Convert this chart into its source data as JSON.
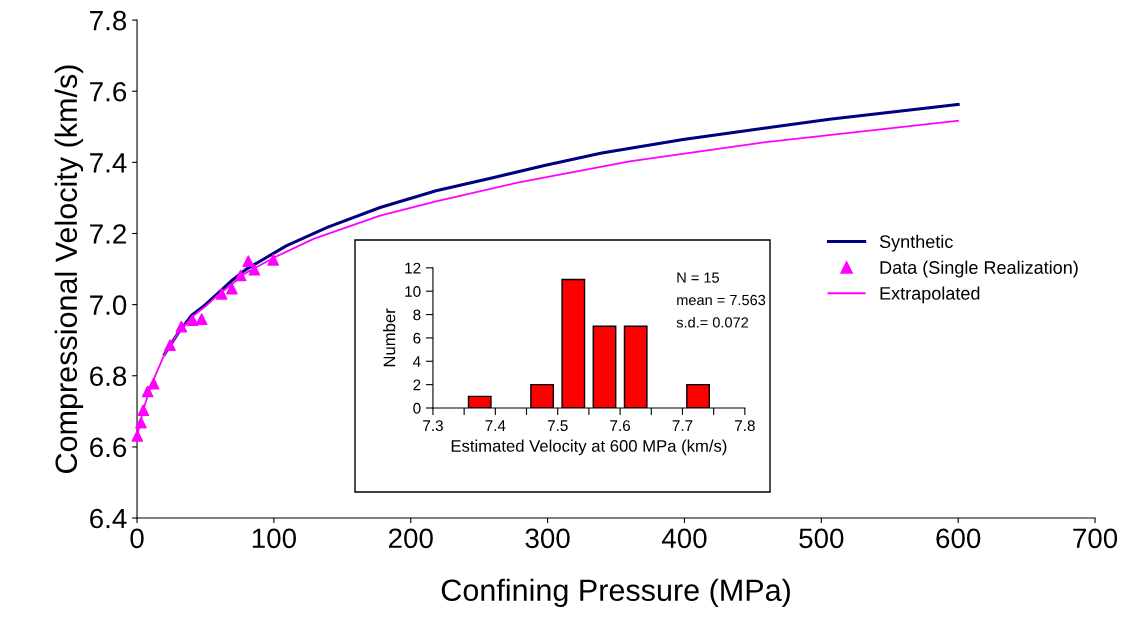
{
  "chart_data": [
    {
      "type": "line",
      "xlabel": "Confining Pressure (MPa)",
      "ylabel": "Compressional Velocity (km/s)",
      "xlim": [
        0,
        700
      ],
      "ylim": [
        6.4,
        7.8
      ],
      "xticks": [
        0,
        100,
        200,
        300,
        400,
        500,
        600,
        700
      ],
      "yticks": [
        6.4,
        6.6,
        6.8,
        {
          "value": 7,
          "label": "7.0"
        },
        7.2,
        7.4,
        7.6,
        7.8
      ],
      "grid": false,
      "legend": "right",
      "series": [
        {
          "name": "Synthetic",
          "type": "line",
          "color": "#000080",
          "marker": "none",
          "x": [
            20,
            30,
            40,
            50,
            60,
            70,
            80,
            93,
            109,
            139,
            177.6,
            218.5,
            260,
            298.5,
            339.6,
            399,
            458,
            506,
            600
          ],
          "values": [
            6.86,
            6.92,
            6.97,
            7.0,
            7.035,
            7.07,
            7.1,
            7.129,
            7.165,
            7.217,
            7.273,
            7.32,
            7.357,
            7.392,
            7.426,
            7.464,
            7.496,
            7.521,
            7.563
          ]
        },
        {
          "name": "Data (Single Realization)",
          "type": "scatter",
          "color": "#ff00ff",
          "marker": "triangle",
          "x": [
            0.2,
            2.9,
            4.6,
            7.8,
            12.1,
            24.1,
            32.4,
            40.6,
            47.2,
            61.8,
            69.3,
            75.7,
            81.3,
            85.7,
            99.5
          ],
          "values": [
            6.631,
            6.668,
            6.703,
            6.756,
            6.778,
            6.886,
            6.938,
            6.956,
            6.959,
            7.03,
            7.045,
            7.082,
            7.122,
            7.098,
            7.126
          ]
        },
        {
          "name": "Extrapolated",
          "type": "line",
          "color": "#ff00ff",
          "marker": "none",
          "x": [
            0,
            5,
            10,
            20,
            30,
            40,
            50,
            60,
            70,
            80,
            100,
            129,
            177.6,
            218.5,
            278,
            360,
            458,
            600
          ],
          "values": [
            6.63,
            6.71,
            6.77,
            6.86,
            6.92,
            6.965,
            6.995,
            7.03,
            7.06,
            7.09,
            7.132,
            7.185,
            7.25,
            7.29,
            7.343,
            7.403,
            7.456,
            7.517
          ]
        }
      ]
    },
    {
      "type": "histogram",
      "xlabel": "Estimated Velocity at 600 MPa (km/s)",
      "ylabel": "Number",
      "bins": [
        7.35,
        7.4,
        7.45,
        7.5,
        7.55,
        7.6,
        7.65,
        7.7,
        7.75
      ],
      "values": [
        1,
        0,
        2,
        11,
        7,
        7,
        0,
        2
      ],
      "color": "#ff0000",
      "xlim": [
        7.3,
        7.8
      ],
      "ylim": [
        0,
        12
      ],
      "xticks": [
        7.3,
        {
          "value": 7.35,
          "label": null
        },
        7.4,
        {
          "value": 7.45,
          "label": null
        },
        7.5,
        {
          "value": 7.55,
          "label": null
        },
        7.6,
        {
          "value": 7.65,
          "label": null
        },
        7.7,
        {
          "value": 7.75,
          "label": null
        },
        7.8
      ],
      "yticks": [
        0,
        2,
        4,
        6,
        8,
        10,
        12
      ],
      "grid": false,
      "annotations": [
        "N = 15",
        "mean = 7.563",
        "s.d.= 0.072"
      ]
    }
  ]
}
